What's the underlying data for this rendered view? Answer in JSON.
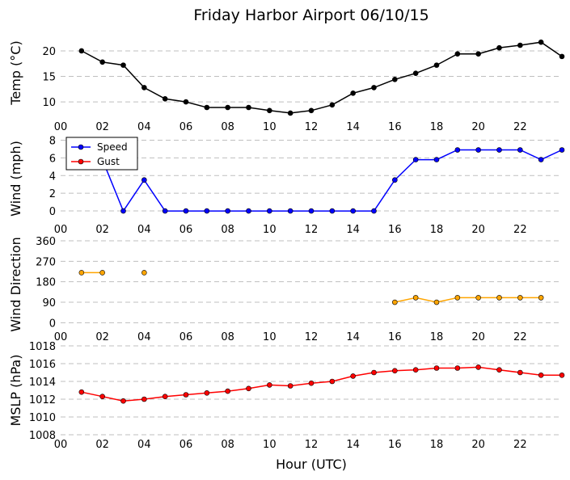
{
  "title": "Friday Harbor Airport 06/10/15",
  "x_axis": {
    "label": "Hour (UTC)",
    "range": [
      0,
      24
    ],
    "ticks": [
      0,
      2,
      4,
      6,
      8,
      10,
      12,
      14,
      16,
      18,
      20,
      22
    ],
    "tick_labels": [
      "00",
      "02",
      "04",
      "06",
      "08",
      "10",
      "12",
      "14",
      "16",
      "18",
      "20",
      "22"
    ]
  },
  "chart_data": [
    {
      "type": "line",
      "ylabel": "Temp ($^\\circ$C)",
      "ylabel_display": "Temp (°C)",
      "ylim": [
        7,
        23
      ],
      "yticks": [
        10,
        15,
        20
      ],
      "grid": "y-dashed",
      "series": [
        {
          "color": "#000000",
          "x": [
            1,
            2,
            3,
            4,
            5,
            6,
            7,
            8,
            9,
            10,
            11,
            12,
            13,
            14,
            15,
            16,
            17,
            18,
            19,
            20,
            21,
            22,
            23,
            24
          ],
          "y": [
            20.0,
            17.8,
            17.2,
            12.8,
            10.6,
            10.0,
            8.9,
            8.9,
            8.9,
            8.3,
            7.8,
            8.3,
            9.4,
            11.7,
            12.8,
            14.4,
            15.6,
            17.2,
            19.4,
            19.4,
            20.6,
            21.1,
            21.7,
            18.9
          ]
        }
      ]
    },
    {
      "type": "line",
      "ylabel": "Wind (mph)",
      "ylim": [
        -1,
        8.5
      ],
      "yticks": [
        0,
        2,
        4,
        6,
        8
      ],
      "grid": "y-dashed",
      "legend": {
        "placement": "top-left",
        "entries": [
          "Speed",
          "Gust"
        ]
      },
      "series": [
        {
          "name": "Speed",
          "color": "#0000ff",
          "x": [
            1,
            2,
            3,
            4,
            5,
            6,
            7,
            8,
            9,
            10,
            11,
            12,
            13,
            14,
            15,
            16,
            17,
            18,
            19,
            20,
            21,
            22,
            23,
            24
          ],
          "y": [
            8.0,
            5.8,
            0,
            3.5,
            0,
            0,
            0,
            0,
            0,
            0,
            0,
            0,
            0,
            0,
            0,
            3.5,
            5.8,
            5.8,
            6.9,
            6.9,
            6.9,
            6.9,
            5.8,
            6.9
          ]
        },
        {
          "name": "Gust",
          "color": "#ff0000",
          "x": [],
          "y": []
        }
      ]
    },
    {
      "type": "line",
      "ylabel": "Wind Direction",
      "ylim": [
        -20,
        360
      ],
      "yticks": [
        0,
        90,
        180,
        270,
        360
      ],
      "grid": "y-dashed",
      "series": [
        {
          "color": "#ffa500",
          "x": [
            1,
            2,
            3,
            4,
            5,
            6,
            7,
            8,
            9,
            10,
            11,
            12,
            13,
            14,
            15,
            16,
            17,
            18,
            19,
            20,
            21,
            22,
            23
          ],
          "y": [
            220,
            220,
            null,
            220,
            null,
            null,
            null,
            null,
            null,
            null,
            null,
            null,
            null,
            null,
            null,
            90,
            110,
            90,
            110,
            110,
            110,
            110,
            110
          ]
        }
      ]
    },
    {
      "type": "line",
      "ylabel": "MSLP (hPa)",
      "ylim": [
        1008,
        1018
      ],
      "yticks": [
        1008,
        1010,
        1012,
        1014,
        1016,
        1018
      ],
      "grid": "y-dashed",
      "series": [
        {
          "color": "#ff0000",
          "x": [
            1,
            2,
            3,
            4,
            5,
            6,
            7,
            8,
            9,
            10,
            11,
            12,
            13,
            14,
            15,
            16,
            17,
            18,
            19,
            20,
            21,
            22,
            23,
            24
          ],
          "y": [
            1012.8,
            1012.3,
            1011.8,
            1012.0,
            1012.3,
            1012.5,
            1012.7,
            1012.9,
            1013.2,
            1013.6,
            1013.5,
            1013.8,
            1014.0,
            1014.6,
            1015.0,
            1015.2,
            1015.3,
            1015.5,
            1015.5,
            1015.6,
            1015.3,
            1015.0,
            1014.7,
            1014.7
          ]
        }
      ]
    }
  ]
}
